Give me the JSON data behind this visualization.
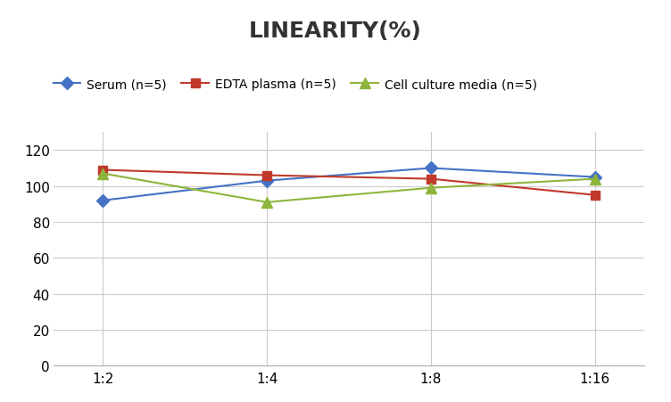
{
  "title": "LINEARITY(%)",
  "x_labels": [
    "1:2",
    "1:4",
    "1:8",
    "1:16"
  ],
  "x_positions": [
    0,
    1,
    2,
    3
  ],
  "series": [
    {
      "name": "Serum (n=5)",
      "values": [
        92,
        103,
        110,
        105
      ],
      "color": "#4472C4",
      "marker": "D",
      "marker_size": 7,
      "linewidth": 1.5
    },
    {
      "name": "EDTA plasma (n=5)",
      "values": [
        109,
        106,
        104,
        95
      ],
      "color": "#C0392B",
      "marker": "s",
      "marker_size": 7,
      "linewidth": 1.5
    },
    {
      "name": "Cell culture media (n=5)",
      "values": [
        107,
        91,
        99,
        104
      ],
      "color": "#8DB53C",
      "marker": "^",
      "marker_size": 8,
      "linewidth": 1.5
    }
  ],
  "ylim": [
    0,
    130
  ],
  "yticks": [
    0,
    20,
    40,
    60,
    80,
    100,
    120
  ],
  "title_fontsize": 18,
  "title_fontweight": "bold",
  "title_color": "#333333",
  "legend_fontsize": 10,
  "tick_fontsize": 11,
  "grid_color": "#CCCCCC",
  "background_color": "#FFFFFF"
}
